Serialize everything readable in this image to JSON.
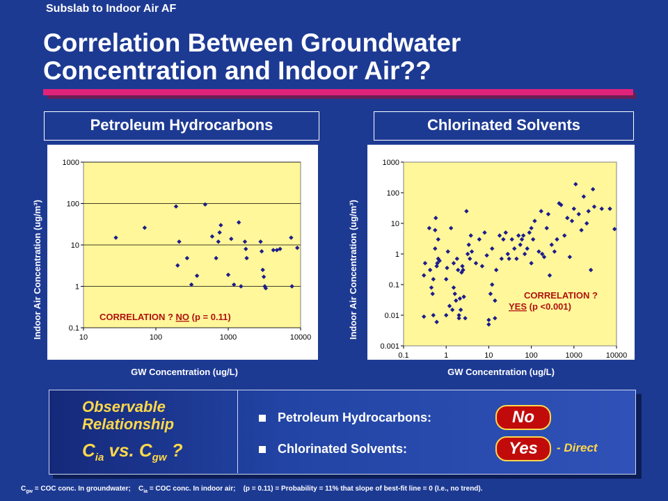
{
  "supertitle": "Subslab to Indoor Air AF",
  "title": "Correlation Between Groundwater\nConcentration and Indoor Air??",
  "colors": {
    "background": "#1d3a93",
    "accent_bar": "#e0237a",
    "plot_bg": "#fff799",
    "marker": "#1c1c8c",
    "annotation": "#b01010",
    "highlight": "#ffd84a",
    "pill": "#c10b0b"
  },
  "panels": {
    "left": {
      "heading": "Petroleum Hydrocarbons",
      "ylabel": "Indoor Air Concentration (ug/m³)",
      "xlabel": "GW Concentration (ug/L)",
      "annotation": {
        "prefix": "CORRELATION ?",
        "answer": "NO",
        "stat": "(p = 0.11)"
      }
    },
    "right": {
      "heading": "Chlorinated Solvents",
      "ylabel": "Indoor Air Concentration (ug/m³)",
      "xlabel": "GW Concentration (ug/L)",
      "annotation": {
        "prefix": "CORRELATION ?",
        "answer": "YES",
        "stat": "(p <0.001)"
      }
    }
  },
  "bottom": {
    "observable": [
      "Observable",
      "Relationship"
    ],
    "formula_left": "C",
    "formula_left_sub": "ia",
    "formula_mid": " vs. C",
    "formula_right_sub": "gw",
    "formula_end": " ?",
    "rows": [
      {
        "label": "Petroleum Hydrocarbons:",
        "answer": "No"
      },
      {
        "label": "Chlorinated Solvents:",
        "answer": "Yes"
      }
    ],
    "direct_note": "- Direct"
  },
  "footnote": {
    "c": "C",
    "gw": "gw",
    "gw_text": " = COC conc. In groundwater;",
    "ia": "ia",
    "ia_text": " = COC conc. In indoor air;",
    "p_text": "(p = 0.11) = Probability = 11% that slope of best-fit line = 0 (I.e., no trend)."
  },
  "chart_data": [
    {
      "type": "scatter",
      "title": "Petroleum Hydrocarbons",
      "xlabel": "GW Concentration (ug/L)",
      "ylabel": "Indoor Air Concentration (ug/m³)",
      "xscale": "log",
      "yscale": "log",
      "xlim": [
        10,
        10000
      ],
      "ylim": [
        0.1,
        1000
      ],
      "xticks": [
        "10",
        "100",
        "1000",
        "10000"
      ],
      "yticks": [
        "0.1",
        "1",
        "10",
        "100",
        "1000"
      ],
      "grid": "horizontal",
      "series": [
        {
          "points": [
            [
              28,
              15
            ],
            [
              70,
              26
            ],
            [
              190,
              85
            ],
            [
              200,
              3.2
            ],
            [
              210,
              12
            ],
            [
              270,
              4.8
            ],
            [
              310,
              1.1
            ],
            [
              370,
              1.8
            ],
            [
              480,
              95
            ],
            [
              600,
              16
            ],
            [
              680,
              4.8
            ],
            [
              730,
              12
            ],
            [
              760,
              20
            ],
            [
              790,
              30
            ],
            [
              1000,
              1.9
            ],
            [
              1100,
              14
            ],
            [
              1200,
              1.1
            ],
            [
              1400,
              35
            ],
            [
              1500,
              1.0
            ],
            [
              1700,
              12
            ],
            [
              1750,
              8
            ],
            [
              1800,
              4.8
            ],
            [
              2800,
              12
            ],
            [
              2900,
              7
            ],
            [
              3000,
              2.5
            ],
            [
              3100,
              1.7
            ],
            [
              3200,
              1.0
            ],
            [
              3300,
              0.9
            ],
            [
              4200,
              7.5
            ],
            [
              4700,
              7.5
            ],
            [
              5200,
              8
            ],
            [
              7400,
              15
            ],
            [
              7600,
              1.0
            ],
            [
              9000,
              8.5
            ]
          ]
        }
      ],
      "annotation": "CORRELATION ? NO (p = 0.11)"
    },
    {
      "type": "scatter",
      "title": "Chlorinated Solvents",
      "xlabel": "GW Concentration (ug/L)",
      "ylabel": "Indoor Air Concentration (ug/m³)",
      "xscale": "log",
      "yscale": "log",
      "xlim": [
        0.1,
        10000
      ],
      "ylim": [
        0.001,
        1000
      ],
      "xticks": [
        "0.1",
        "1",
        "10",
        "100",
        "1000",
        "10000"
      ],
      "yticks": [
        "0.001",
        "0.01",
        "0.1",
        "1",
        "10",
        "100",
        "1000"
      ],
      "grid": "none",
      "series": [
        {
          "points": [
            [
              0.3,
              0.009
            ],
            [
              0.3,
              0.2
            ],
            [
              0.32,
              0.5
            ],
            [
              0.4,
              7
            ],
            [
              0.42,
              0.3
            ],
            [
              0.45,
              0.08
            ],
            [
              0.48,
              0.05
            ],
            [
              0.5,
              0.01
            ],
            [
              0.5,
              0.15
            ],
            [
              0.55,
              1.5
            ],
            [
              0.55,
              6
            ],
            [
              0.57,
              15
            ],
            [
              0.6,
              0.4
            ],
            [
              0.6,
              0.006
            ],
            [
              0.62,
              0.5
            ],
            [
              0.65,
              3
            ],
            [
              0.65,
              0.7
            ],
            [
              0.7,
              0.6
            ],
            [
              1.0,
              0.01
            ],
            [
              1.0,
              0.15
            ],
            [
              1.05,
              0.35
            ],
            [
              1.1,
              1.2
            ],
            [
              1.2,
              0.02
            ],
            [
              1.3,
              7
            ],
            [
              1.4,
              0.015
            ],
            [
              1.5,
              0.5
            ],
            [
              1.5,
              0.08
            ],
            [
              1.6,
              0.05
            ],
            [
              1.7,
              0.03
            ],
            [
              1.8,
              0.7
            ],
            [
              1.9,
              0.3
            ],
            [
              2.0,
              0.01
            ],
            [
              2.0,
              0.008
            ],
            [
              2.1,
              0.035
            ],
            [
              2.2,
              0.015
            ],
            [
              2.3,
              0.25
            ],
            [
              2.4,
              0.4
            ],
            [
              2.5,
              0.3
            ],
            [
              2.6,
              0.04
            ],
            [
              2.8,
              0.008
            ],
            [
              3.0,
              25
            ],
            [
              3.2,
              1.0
            ],
            [
              3.4,
              2
            ],
            [
              3.6,
              0.7
            ],
            [
              3.8,
              4
            ],
            [
              4.0,
              1.2
            ],
            [
              5,
              0.5
            ],
            [
              6,
              3
            ],
            [
              7,
              0.4
            ],
            [
              8,
              5
            ],
            [
              9,
              0.9
            ],
            [
              10,
              0.005
            ],
            [
              10,
              0.007
            ],
            [
              11,
              0.05
            ],
            [
              12,
              0.1
            ],
            [
              12,
              1.5
            ],
            [
              14,
              0.03
            ],
            [
              14,
              0.008
            ],
            [
              15,
              0.3
            ],
            [
              18,
              4
            ],
            [
              20,
              0.7
            ],
            [
              22,
              3
            ],
            [
              25,
              5
            ],
            [
              28,
              1.0
            ],
            [
              30,
              0.7
            ],
            [
              35,
              3
            ],
            [
              40,
              1.5
            ],
            [
              45,
              0.7
            ],
            [
              50,
              4
            ],
            [
              55,
              2
            ],
            [
              60,
              3
            ],
            [
              65,
              4
            ],
            [
              70,
              1
            ],
            [
              80,
              1.5
            ],
            [
              90,
              5
            ],
            [
              100,
              0.5
            ],
            [
              100,
              7
            ],
            [
              110,
              3
            ],
            [
              120,
              12
            ],
            [
              150,
              1.2
            ],
            [
              170,
              25
            ],
            [
              180,
              1.0
            ],
            [
              200,
              0.8
            ],
            [
              230,
              7
            ],
            [
              250,
              20
            ],
            [
              270,
              0.2
            ],
            [
              300,
              2
            ],
            [
              350,
              1.2
            ],
            [
              400,
              3
            ],
            [
              450,
              45
            ],
            [
              500,
              40
            ],
            [
              600,
              4
            ],
            [
              700,
              15
            ],
            [
              800,
              0.8
            ],
            [
              900,
              12
            ],
            [
              1000,
              30
            ],
            [
              1100,
              190
            ],
            [
              1300,
              20
            ],
            [
              1500,
              6
            ],
            [
              1700,
              75
            ],
            [
              2000,
              10
            ],
            [
              2200,
              25
            ],
            [
              2500,
              0.3
            ],
            [
              2800,
              130
            ],
            [
              3000,
              35
            ],
            [
              4500,
              30
            ],
            [
              7000,
              30
            ],
            [
              9000,
              6.5
            ]
          ]
        }
      ],
      "annotation": "CORRELATION ? YES (p <0.001)"
    }
  ]
}
